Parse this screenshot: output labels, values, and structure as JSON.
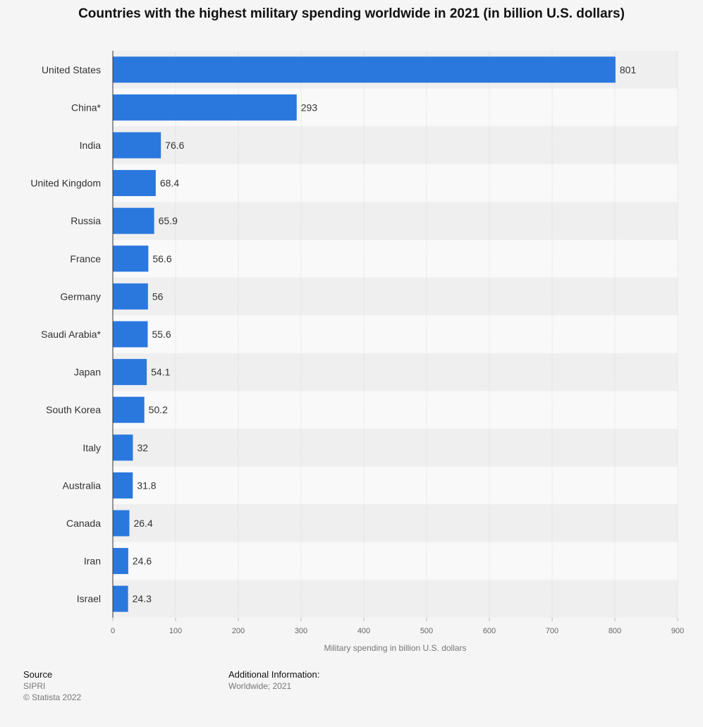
{
  "chart_data": {
    "type": "bar",
    "orientation": "horizontal",
    "title": "Countries with the highest military spending worldwide in 2021 (in billion U.S. dollars)",
    "xlabel": "Military spending in billion U.S. dollars",
    "ylabel": "",
    "xlim": [
      0,
      900
    ],
    "ticks": [
      0,
      100,
      200,
      300,
      400,
      500,
      600,
      700,
      800,
      900
    ],
    "grid": true,
    "bar_color": "#2a78de",
    "categories": [
      "United States",
      "China*",
      "India",
      "United Kingdom",
      "Russia",
      "France",
      "Germany",
      "Saudi Arabia*",
      "Japan",
      "South Korea",
      "Italy",
      "Australia",
      "Canada",
      "Iran",
      "Israel"
    ],
    "values": [
      801,
      293,
      76.6,
      68.4,
      65.9,
      56.6,
      56,
      55.6,
      54.1,
      50.2,
      32,
      31.8,
      26.4,
      24.6,
      24.3
    ],
    "value_labels": [
      "801",
      "293",
      "76.6",
      "68.4",
      "65.9",
      "56.6",
      "56",
      "55.6",
      "54.1",
      "50.2",
      "32",
      "31.8",
      "26.4",
      "24.6",
      "24.3"
    ]
  },
  "footer": {
    "source_heading": "Source",
    "source_lines": [
      "SIPRI",
      "© Statista 2022"
    ],
    "info_heading": "Additional Information:",
    "info_lines": [
      "Worldwide; 2021"
    ]
  }
}
